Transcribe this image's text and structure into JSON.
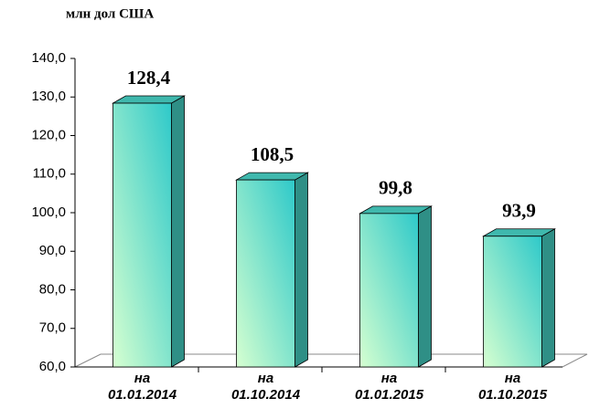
{
  "chart_data": {
    "type": "bar3d",
    "title": "млн дол США",
    "categories": [
      "на 01.01.2014",
      "на 01.10.2014",
      "на 01.01.2015",
      "на 01.10.2015"
    ],
    "values": [
      128.4,
      108.5,
      99.8,
      93.9
    ],
    "value_labels": [
      "128,4",
      "108,5",
      "99,8",
      "93,9"
    ],
    "ylim": [
      60,
      140
    ],
    "yticks": [
      {
        "value": 60,
        "label": "60,0"
      },
      {
        "value": 70,
        "label": "70,0"
      },
      {
        "value": 80,
        "label": "80,0"
      },
      {
        "value": 90,
        "label": "90,0"
      },
      {
        "value": 100,
        "label": "100,0"
      },
      {
        "value": 110,
        "label": "110,0"
      },
      {
        "value": 120,
        "label": "120,0"
      },
      {
        "value": 130,
        "label": "130,0"
      },
      {
        "value": 140,
        "label": "140,0"
      }
    ]
  }
}
